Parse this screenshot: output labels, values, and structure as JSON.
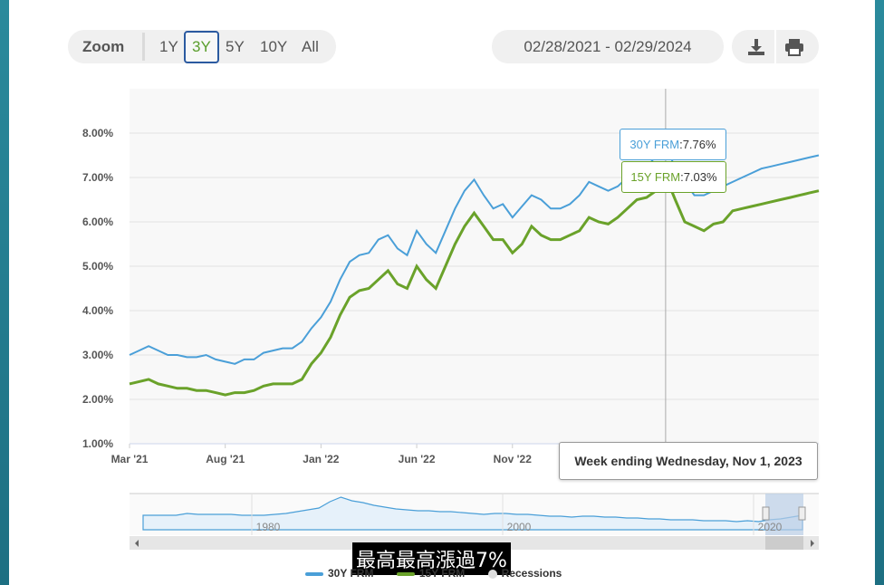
{
  "toolbar": {
    "zoom_label": "Zoom",
    "zoom_options": [
      "1Y",
      "3Y",
      "5Y",
      "10Y",
      "All"
    ],
    "active_zoom": "3Y",
    "date_range": "02/28/2021 - 02/29/2024",
    "download_icon": "download-icon",
    "print_icon": "print-icon"
  },
  "subtitle": "最高最高漲過7%",
  "legend": {
    "s1": "30Y FRM",
    "s2": "15Y FRM",
    "s3": "Recessions"
  },
  "navigator": {
    "labels": [
      "1980",
      "2000",
      "2020"
    ]
  },
  "tooltip": {
    "header": "Week ending Wednesday, Nov 1, 2023",
    "s1_label": "30Y FRM",
    "s1_value": ":7.76%",
    "s2_label": "15Y FRM",
    "s2_value": ":7.03%"
  },
  "colors": {
    "s1": "#4a9fd8",
    "s2": "#6aa22a",
    "accent": "#2b5aa0"
  },
  "chart_data": {
    "type": "line",
    "title": "",
    "xlabel": "",
    "ylabel": "",
    "x_ticks": [
      "Mar '21",
      "Aug '21",
      "Jan '22",
      "Jun '22",
      "Nov '22"
    ],
    "y_ticks": [
      "1.00%",
      "2.00%",
      "3.00%",
      "4.00%",
      "5.00%",
      "6.00%",
      "7.00%",
      "8.00%"
    ],
    "ylim": [
      1.0,
      9.0
    ],
    "xlim": [
      0,
      36
    ],
    "series": [
      {
        "name": "30Y FRM",
        "x": [
          0,
          0.5,
          1,
          1.5,
          2,
          2.5,
          3,
          3.5,
          4,
          4.5,
          5,
          5.5,
          6,
          6.5,
          7,
          7.5,
          8,
          8.5,
          9,
          9.5,
          10,
          10.5,
          11,
          11.5,
          12,
          12.5,
          13,
          13.5,
          14,
          14.5,
          15,
          15.5,
          16,
          16.5,
          17,
          17.5,
          18,
          18.5,
          19,
          19.5,
          20,
          20.5,
          21,
          21.5,
          22,
          22.5,
          23,
          23.5,
          24,
          24.5,
          25,
          25.5,
          26,
          26.5,
          27,
          27.5,
          28,
          28.5,
          29,
          29.5,
          30,
          30.5,
          31,
          31.5,
          32,
          32.5,
          33,
          33.5,
          34,
          34.5,
          35,
          35.5,
          36
        ],
        "values": [
          3.0,
          3.1,
          3.2,
          3.1,
          3.0,
          3.0,
          2.95,
          2.95,
          3.0,
          2.9,
          2.85,
          2.8,
          2.9,
          2.9,
          3.05,
          3.1,
          3.15,
          3.15,
          3.3,
          3.6,
          3.85,
          4.2,
          4.7,
          5.1,
          5.25,
          5.3,
          5.6,
          5.7,
          5.4,
          5.25,
          5.8,
          5.5,
          5.3,
          5.8,
          6.3,
          6.7,
          6.95,
          6.6,
          6.3,
          6.4,
          6.1,
          6.35,
          6.6,
          6.5,
          6.3,
          6.3,
          6.4,
          6.6,
          6.9,
          6.8,
          6.7,
          6.8,
          7.0,
          7.15,
          7.2,
          7.5,
          7.76,
          7.2,
          6.9,
          6.6,
          6.6,
          6.7,
          6.8,
          6.9,
          7.0,
          7.1,
          7.2,
          7.25,
          7.3,
          7.35,
          7.4,
          7.45,
          7.5
        ]
      },
      {
        "name": "15Y FRM",
        "x": [
          0,
          0.5,
          1,
          1.5,
          2,
          2.5,
          3,
          3.5,
          4,
          4.5,
          5,
          5.5,
          6,
          6.5,
          7,
          7.5,
          8,
          8.5,
          9,
          9.5,
          10,
          10.5,
          11,
          11.5,
          12,
          12.5,
          13,
          13.5,
          14,
          14.5,
          15,
          15.5,
          16,
          16.5,
          17,
          17.5,
          18,
          18.5,
          19,
          19.5,
          20,
          20.5,
          21,
          21.5,
          22,
          22.5,
          23,
          23.5,
          24,
          24.5,
          25,
          25.5,
          26,
          26.5,
          27,
          27.5,
          28,
          28.5,
          29,
          29.5,
          30,
          30.5,
          31,
          31.5,
          32,
          32.5,
          33,
          33.5,
          34,
          34.5,
          35,
          35.5,
          36
        ],
        "values": [
          2.35,
          2.4,
          2.45,
          2.35,
          2.3,
          2.25,
          2.25,
          2.2,
          2.2,
          2.15,
          2.1,
          2.15,
          2.15,
          2.2,
          2.3,
          2.35,
          2.35,
          2.35,
          2.45,
          2.8,
          3.05,
          3.4,
          3.9,
          4.3,
          4.45,
          4.5,
          4.7,
          4.9,
          4.6,
          4.5,
          5.0,
          4.7,
          4.5,
          5.0,
          5.5,
          5.9,
          6.2,
          5.9,
          5.6,
          5.6,
          5.3,
          5.5,
          5.9,
          5.7,
          5.6,
          5.6,
          5.7,
          5.8,
          6.1,
          6.0,
          5.95,
          6.1,
          6.3,
          6.5,
          6.55,
          6.7,
          7.03,
          6.5,
          6.0,
          5.9,
          5.8,
          5.95,
          6.0,
          6.25,
          6.3,
          6.35,
          6.4,
          6.45,
          6.5,
          6.55,
          6.6,
          6.65,
          6.7
        ]
      }
    ],
    "grid": true,
    "legend": "bottom",
    "crosshair_x": 28
  }
}
